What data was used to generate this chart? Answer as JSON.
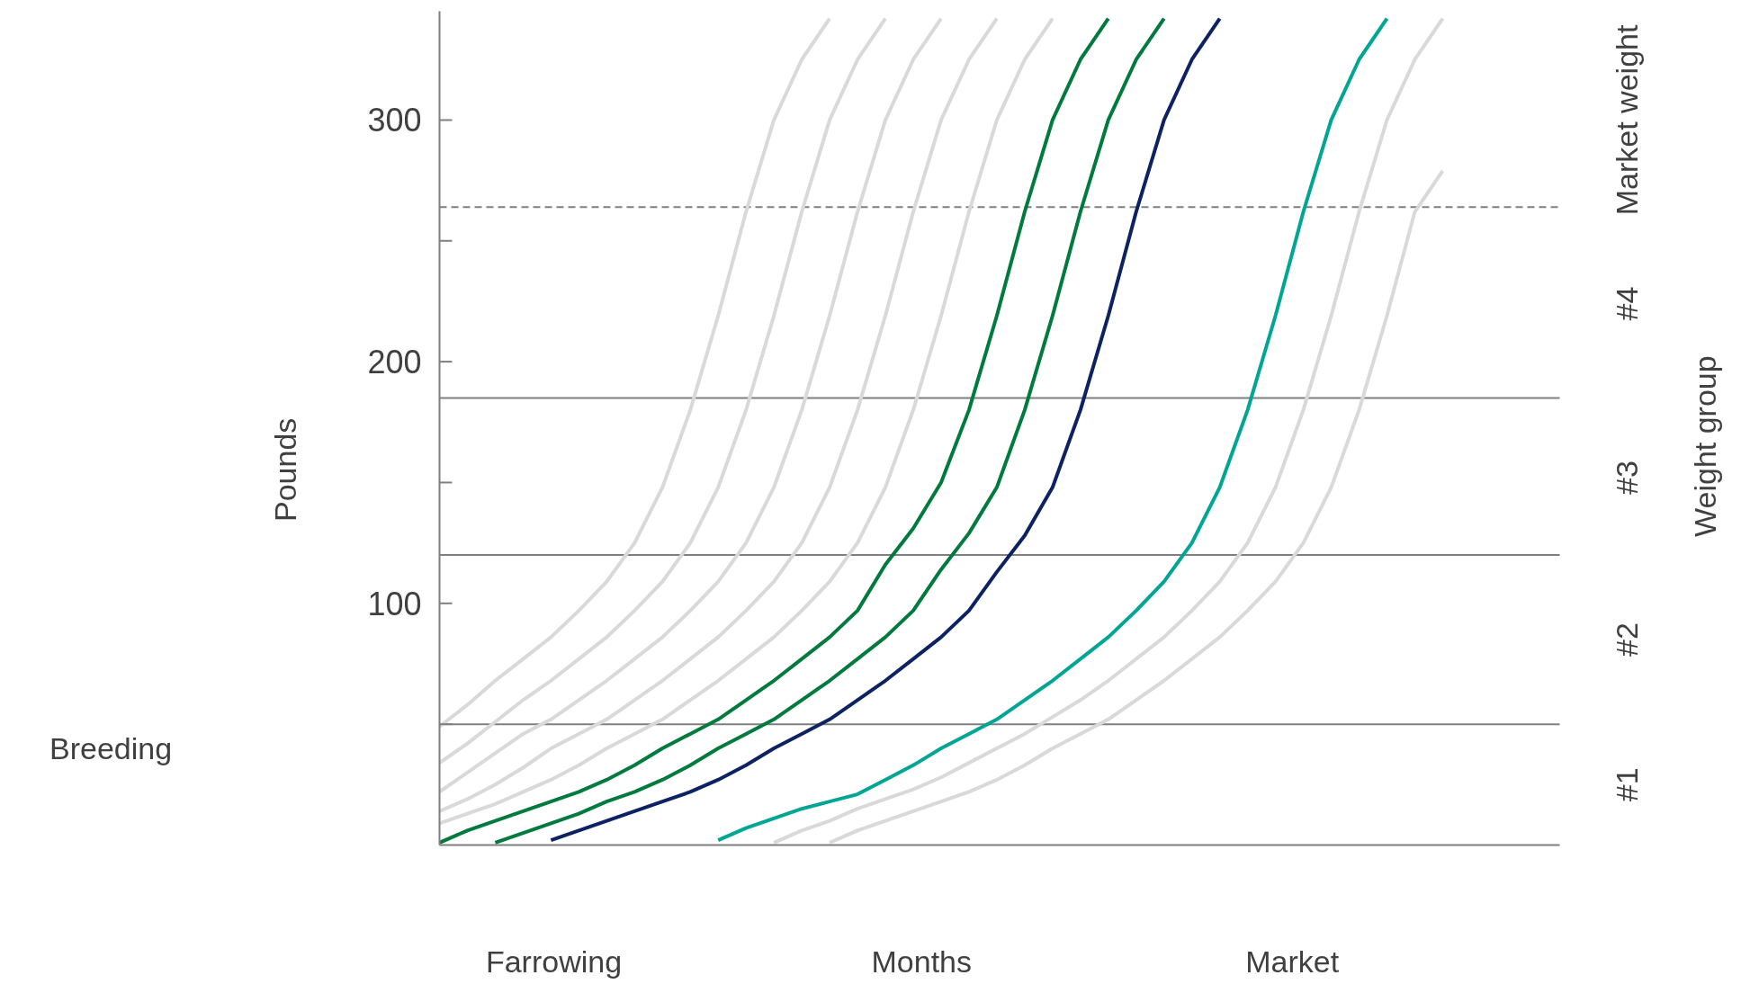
{
  "chart_data": {
    "type": "line",
    "xlabel": "Months",
    "ylabel": "Pounds",
    "categories": [
      null,
      null,
      null,
      null,
      null,
      null,
      null,
      null,
      null,
      null,
      null,
      null,
      null,
      null,
      null,
      null,
      null,
      null,
      null,
      null,
      null,
      null,
      null,
      null,
      null,
      null,
      null,
      null,
      null,
      null,
      null,
      null,
      null,
      null,
      null,
      null,
      null,
      null,
      null,
      null,
      null
    ],
    "ylim": [
      0,
      345
    ],
    "yticks": [
      {
        "value": 50,
        "label": null
      },
      100,
      {
        "value": 150,
        "label": null
      },
      200,
      {
        "value": 250,
        "label": null
      },
      300
    ],
    "grid": false,
    "marker": "none",
    "line_style": "solid",
    "series": [
      {
        "color": "#d9d9d9",
        "values": [
          49,
          58,
          68,
          77,
          86,
          97,
          109,
          125,
          148,
          180,
          219,
          262,
          300,
          325,
          342,
          null,
          null,
          null,
          null,
          null,
          null,
          null,
          null,
          null,
          null,
          null,
          null,
          null,
          null,
          null,
          null,
          null,
          null,
          null,
          null,
          null,
          null,
          null,
          null,
          null,
          null
        ]
      },
      {
        "color": "#d9d9d9",
        "values": [
          34,
          42,
          51,
          60,
          68,
          77,
          86,
          97,
          109,
          125,
          148,
          180,
          219,
          262,
          300,
          325,
          342,
          null,
          null,
          null,
          null,
          null,
          null,
          null,
          null,
          null,
          null,
          null,
          null,
          null,
          null,
          null,
          null,
          null,
          null,
          null,
          null,
          null,
          null,
          null,
          null
        ]
      },
      {
        "color": "#d9d9d9",
        "values": [
          22,
          30,
          38,
          46,
          52,
          60,
          68,
          77,
          86,
          97,
          109,
          125,
          148,
          180,
          219,
          262,
          300,
          325,
          342,
          null,
          null,
          null,
          null,
          null,
          null,
          null,
          null,
          null,
          null,
          null,
          null,
          null,
          null,
          null,
          null,
          null,
          null,
          null,
          null,
          null,
          null
        ]
      },
      {
        "color": "#d9d9d9",
        "values": [
          14,
          19,
          25,
          32,
          40,
          46,
          52,
          60,
          68,
          77,
          86,
          97,
          109,
          125,
          148,
          180,
          219,
          262,
          300,
          325,
          342,
          null,
          null,
          null,
          null,
          null,
          null,
          null,
          null,
          null,
          null,
          null,
          null,
          null,
          null,
          null,
          null,
          null,
          null,
          null,
          null
        ]
      },
      {
        "color": "#d9d9d9",
        "values": [
          9,
          13,
          17,
          22,
          27,
          33,
          40,
          46,
          52,
          60,
          68,
          77,
          86,
          97,
          109,
          125,
          148,
          180,
          219,
          262,
          300,
          325,
          342,
          null,
          null,
          null,
          null,
          null,
          null,
          null,
          null,
          null,
          null,
          null,
          null,
          null,
          null,
          null,
          null,
          null,
          null
        ]
      },
      {
        "color": "#007a3d",
        "values": [
          1,
          6,
          10,
          14,
          18,
          22,
          27,
          33,
          40,
          46,
          52,
          60,
          68,
          77,
          86,
          97,
          116,
          131,
          150,
          180,
          219,
          262,
          300,
          325,
          342,
          null,
          null,
          null,
          null,
          null,
          null,
          null,
          null,
          null,
          null,
          null,
          null,
          null,
          null,
          null,
          null
        ]
      },
      {
        "color": "#007a3d",
        "values": [
          null,
          null,
          1,
          5,
          9,
          13,
          18,
          22,
          27,
          33,
          40,
          46,
          52,
          60,
          68,
          77,
          86,
          97,
          114,
          129,
          148,
          180,
          219,
          262,
          300,
          325,
          342,
          null,
          null,
          null,
          null,
          null,
          null,
          null,
          null,
          null,
          null,
          null,
          null,
          null,
          null
        ]
      },
      {
        "color": "#0d2262",
        "values": [
          null,
          null,
          null,
          null,
          2,
          6,
          10,
          14,
          18,
          22,
          27,
          33,
          40,
          46,
          52,
          60,
          68,
          77,
          86,
          97,
          113,
          128,
          148,
          180,
          219,
          262,
          300,
          325,
          342,
          null,
          null,
          null,
          null,
          null,
          null,
          null,
          null,
          null,
          null,
          null,
          null
        ]
      },
      {
        "color": "#00a693",
        "values": [
          null,
          null,
          null,
          null,
          null,
          null,
          null,
          null,
          null,
          null,
          2,
          7,
          11,
          15,
          18,
          21,
          27,
          33,
          40,
          46,
          52,
          60,
          68,
          77,
          86,
          97,
          109,
          125,
          148,
          180,
          219,
          262,
          300,
          325,
          342,
          null,
          null,
          null,
          null,
          null,
          null
        ]
      },
      {
        "color": "#d9d9d9",
        "values": [
          null,
          null,
          null,
          null,
          null,
          null,
          null,
          null,
          null,
          null,
          null,
          null,
          1,
          6,
          10,
          15,
          19,
          23,
          28,
          34,
          40,
          46,
          53,
          60,
          68,
          77,
          86,
          97,
          109,
          125,
          148,
          180,
          219,
          262,
          300,
          325,
          342,
          null,
          null,
          null,
          null
        ]
      },
      {
        "color": "#d9d9d9",
        "values": [
          null,
          null,
          null,
          null,
          null,
          null,
          null,
          null,
          null,
          null,
          null,
          null,
          null,
          null,
          1,
          6,
          10,
          14,
          18,
          22,
          27,
          33,
          40,
          46,
          52,
          60,
          68,
          77,
          86,
          97,
          109,
          125,
          148,
          180,
          219,
          262,
          279,
          null,
          null,
          null,
          null
        ]
      }
    ],
    "ref_lines": [
      {
        "axis": "y",
        "value": 50,
        "color": "#7f7f7f",
        "line_style": "solid"
      },
      {
        "axis": "y",
        "value": 120,
        "color": "#7f7f7f",
        "line_style": "solid"
      },
      {
        "axis": "y",
        "value": 185,
        "color": "#7f7f7f",
        "line_style": "solid"
      },
      {
        "axis": "y",
        "value": 264,
        "color": "#7f7f7f",
        "line_style": "dashed"
      }
    ],
    "annotations": [
      "Breeding",
      "Farrowing",
      "Market",
      "Weight group",
      "#1",
      "#2",
      "#3",
      "#4",
      "Market weight"
    ]
  }
}
